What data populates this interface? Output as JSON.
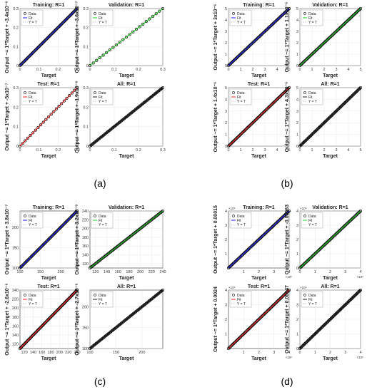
{
  "figure": {
    "panel_labels": [
      "(a)",
      "(b)",
      "(c)",
      "(d)"
    ],
    "legend_items": [
      "Data",
      "Fit",
      "Y = T"
    ],
    "xlabel": "Target",
    "colors": {
      "Training": "#0000ff",
      "Validation": "#00cc00",
      "Test": "#ff0000",
      "All": "#000000",
      "identity": "#888888",
      "data_marker": "#000000"
    }
  },
  "chart_data": [
    {
      "panel": "(a)",
      "type": "scatter",
      "title": "Training: R=1",
      "ylabel": "Output ~= 1*Target + -3.4x10⁻⁶",
      "kind": "Training",
      "xlim": [
        0,
        0.3
      ],
      "ylim": [
        0,
        0.3
      ],
      "xticks": [
        "0",
        "0.1",
        "0.2",
        "0.3"
      ],
      "yticks": [
        "0",
        "0.1",
        "0.2",
        "0.3"
      ],
      "x": [
        0.0,
        0.3
      ],
      "y": [
        0.0,
        0.3
      ],
      "points": "dense"
    },
    {
      "panel": "(a)",
      "type": "scatter",
      "title": "Validation: R=1",
      "ylabel": "Output ~= 1*Target + -3.6x10⁻⁷",
      "kind": "Validation",
      "xlim": [
        0,
        0.3
      ],
      "ylim": [
        0,
        0.3
      ],
      "xticks": [
        "0",
        "0.1",
        "0.2",
        "0.3"
      ],
      "yticks": [
        "0",
        "0.1",
        "0.2",
        "0.3"
      ],
      "x": [
        0.0,
        0.3
      ],
      "y": [
        0.0,
        0.3
      ],
      "points": "sparse"
    },
    {
      "panel": "(a)",
      "type": "scatter",
      "title": "Test: R=1",
      "ylabel": "Output ~= 1*Target + -5x10⁻⁷",
      "kind": "Test",
      "xlim": [
        0,
        0.3
      ],
      "ylim": [
        0,
        0.3
      ],
      "xticks": [
        "0",
        "0.1",
        "0.2",
        "0.3"
      ],
      "yticks": [
        "0",
        "0.1",
        "0.2",
        "0.3"
      ],
      "x": [
        0.0,
        0.3
      ],
      "y": [
        0.0,
        0.3
      ],
      "points": "sparse"
    },
    {
      "panel": "(a)",
      "type": "scatter",
      "title": "All: R=1",
      "ylabel": "Output ~= 1*Target + -1.9x10⁻⁶",
      "kind": "All",
      "xlim": [
        0,
        0.3
      ],
      "ylim": [
        0,
        0.3
      ],
      "xticks": [
        "0",
        "0.1",
        "0.2",
        "0.3"
      ],
      "yticks": [
        "0",
        "0.1",
        "0.2",
        "0.3"
      ],
      "x": [
        0.0,
        0.3
      ],
      "y": [
        0.0,
        0.3
      ],
      "points": "dense"
    },
    {
      "panel": "(b)",
      "type": "scatter",
      "title": "Training: R=1",
      "ylabel": "Output ~= 1*Target + 3x10⁻⁶",
      "kind": "Training",
      "xlim": [
        0,
        5
      ],
      "ylim": [
        0,
        5
      ],
      "xticks": [
        "0",
        "1",
        "2",
        "3",
        "4",
        "5"
      ],
      "yticks": [
        "0",
        "1",
        "2",
        "3",
        "4",
        "5"
      ],
      "x": [
        0,
        5
      ],
      "y": [
        0,
        5
      ],
      "points": "dense"
    },
    {
      "panel": "(b)",
      "type": "scatter",
      "title": "Validation: R=1",
      "ylabel": "Output ~= 1*Target + 1.1x10⁻⁶",
      "kind": "Validation",
      "xlim": [
        0,
        5
      ],
      "ylim": [
        0,
        5
      ],
      "xticks": [
        "0",
        "1",
        "2",
        "3",
        "4",
        "5"
      ],
      "yticks": [
        "0",
        "1",
        "2",
        "3",
        "4",
        "5"
      ],
      "x": [
        0,
        5
      ],
      "y": [
        0,
        5
      ],
      "points": "dense"
    },
    {
      "panel": "(b)",
      "type": "scatter",
      "title": "Test: R=1",
      "ylabel": "Output ~= 1*Target + 1.4x10⁻⁶",
      "kind": "Test",
      "xlim": [
        0,
        5
      ],
      "ylim": [
        0,
        5
      ],
      "xticks": [
        "0",
        "1",
        "2",
        "3",
        "4",
        "5"
      ],
      "yticks": [
        "0",
        "1",
        "2",
        "3",
        "4",
        "5"
      ],
      "x": [
        0,
        5
      ],
      "y": [
        0,
        5
      ],
      "points": "dense"
    },
    {
      "panel": "(b)",
      "type": "scatter",
      "title": "All: R=1",
      "ylabel": "Output ~= 1*Target + 4.3x10⁻⁶",
      "kind": "All",
      "xlim": [
        0,
        5
      ],
      "ylim": [
        0,
        5
      ],
      "xticks": [
        "0",
        "1",
        "2",
        "3",
        "4",
        "5"
      ],
      "yticks": [
        "0",
        "1",
        "2",
        "3",
        "4",
        "5"
      ],
      "x": [
        0,
        5
      ],
      "y": [
        0,
        5
      ],
      "points": "dense"
    },
    {
      "panel": "(c)",
      "type": "scatter",
      "title": "Training: R=1",
      "ylabel": "Output ~= 1*Target + 3.8x10⁻⁷",
      "kind": "Training",
      "xlim": [
        100,
        240
      ],
      "ylim": [
        100,
        240
      ],
      "xticks": [
        "100",
        "150",
        "200"
      ],
      "xtick_vals": [
        100,
        150,
        200
      ],
      "yticks": [
        "100",
        "150",
        "200"
      ],
      "ytick_vals": [
        100,
        150,
        200
      ],
      "x": [
        100,
        240
      ],
      "y": [
        100,
        240
      ],
      "points": "dense"
    },
    {
      "panel": "(c)",
      "type": "scatter",
      "title": "Validation: R=1",
      "ylabel": "Output ~= 1*Target + 3.2x10⁻⁵",
      "kind": "Validation",
      "xlim": [
        110,
        240
      ],
      "ylim": [
        110,
        240
      ],
      "xticks": [
        "120",
        "140",
        "160",
        "180",
        "200",
        "220",
        "240"
      ],
      "xtick_vals": [
        120,
        140,
        160,
        180,
        200,
        220,
        240
      ],
      "yticks": [
        "120",
        "140",
        "160",
        "180",
        "200",
        "220",
        "240"
      ],
      "ytick_vals": [
        120,
        140,
        160,
        180,
        200,
        220,
        240
      ],
      "x": [
        110,
        240
      ],
      "y": [
        110,
        240
      ],
      "points": "dense"
    },
    {
      "panel": "(c)",
      "type": "scatter",
      "title": "Test: R=1",
      "ylabel": "Output ~= 1*Target + -2.6x10⁻⁶",
      "kind": "Test",
      "xlim": [
        110,
        240
      ],
      "ylim": [
        110,
        240
      ],
      "xticks": [
        "120",
        "140",
        "160",
        "180",
        "200",
        "220",
        "240"
      ],
      "xtick_vals": [
        120,
        140,
        160,
        180,
        200,
        220,
        240
      ],
      "yticks": [
        "120",
        "140",
        "160",
        "180",
        "200",
        "220",
        "240"
      ],
      "ytick_vals": [
        120,
        140,
        160,
        180,
        200,
        220,
        240
      ],
      "x": [
        110,
        240
      ],
      "y": [
        110,
        240
      ],
      "points": "dense"
    },
    {
      "panel": "(c)",
      "type": "scatter",
      "title": "All: R=1",
      "ylabel": "Output ~= 1*Target + -2.7x10⁻⁶",
      "kind": "All",
      "xlim": [
        100,
        240
      ],
      "ylim": [
        100,
        240
      ],
      "xticks": [
        "100",
        "150",
        "200"
      ],
      "xtick_vals": [
        100,
        150,
        200
      ],
      "yticks": [
        "100",
        "150",
        "200"
      ],
      "ytick_vals": [
        100,
        150,
        200
      ],
      "x": [
        100,
        240
      ],
      "y": [
        100,
        240
      ],
      "points": "dense"
    },
    {
      "panel": "(d)",
      "type": "scatter",
      "title": "Training: R=1",
      "ylabel": "Output ~= 1*Target + 0.00015",
      "kind": "Training",
      "xlim": [
        0,
        4
      ],
      "ylim": [
        0,
        4
      ],
      "xticks": [
        "1",
        "2",
        "3",
        "4"
      ],
      "xtick_vals": [
        1,
        2,
        3,
        4
      ],
      "yticks": [
        "1",
        "2",
        "3",
        "4"
      ],
      "ytick_vals": [
        1,
        2,
        3,
        4
      ],
      "exp": "×10⁶",
      "x": [
        0,
        4
      ],
      "y": [
        0,
        4
      ],
      "points": "dense"
    },
    {
      "panel": "(d)",
      "type": "scatter",
      "title": "Validation: R=1",
      "ylabel": "Output ~= 1*Target + -0.00063",
      "kind": "Validation",
      "xlim": [
        0,
        4
      ],
      "ylim": [
        0,
        4
      ],
      "xticks": [
        "0",
        "1",
        "2",
        "3",
        "4"
      ],
      "xtick_vals": [
        0,
        1,
        2,
        3,
        4
      ],
      "yticks": [
        "0",
        "1",
        "2",
        "3",
        "4"
      ],
      "ytick_vals": [
        0,
        1,
        2,
        3,
        4
      ],
      "exp": "×10⁶",
      "x": [
        0,
        4
      ],
      "y": [
        0,
        4
      ],
      "points": "dense"
    },
    {
      "panel": "(d)",
      "type": "scatter",
      "title": "Test: R=1",
      "ylabel": "Output ~= 1*Target + 0.0024",
      "kind": "Test",
      "xlim": [
        0,
        4
      ],
      "ylim": [
        0,
        4
      ],
      "xticks": [
        "1",
        "2",
        "3",
        "4"
      ],
      "xtick_vals": [
        1,
        2,
        3,
        4
      ],
      "yticks": [
        "1",
        "2",
        "3",
        "4"
      ],
      "ytick_vals": [
        1,
        2,
        3,
        4
      ],
      "exp": "×10⁶",
      "x": [
        0,
        4
      ],
      "y": [
        0,
        4
      ],
      "points": "dense"
    },
    {
      "panel": "(d)",
      "type": "scatter",
      "title": "All: R=1",
      "ylabel": "Output ~= 1*Target + 0.00047",
      "kind": "All",
      "xlim": [
        0,
        4
      ],
      "ylim": [
        0,
        4
      ],
      "xticks": [
        "0",
        "1",
        "2",
        "3",
        "4"
      ],
      "xtick_vals": [
        0,
        1,
        2,
        3,
        4
      ],
      "yticks": [
        "0",
        "1",
        "2",
        "3",
        "4"
      ],
      "ytick_vals": [
        0,
        1,
        2,
        3,
        4
      ],
      "exp": "×10⁶",
      "x": [
        0,
        4
      ],
      "y": [
        0,
        4
      ],
      "points": "dense"
    }
  ]
}
